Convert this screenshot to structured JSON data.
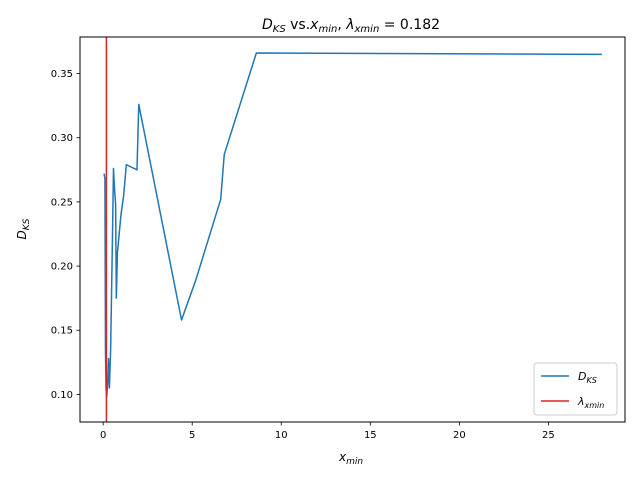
{
  "chart_data": {
    "type": "line",
    "title": {
      "main": "D",
      "main_sub": "KS",
      "middle": " vs.",
      "x": "x",
      "x_sub": "min",
      "sep": ", ",
      "lambda": "λ",
      "lambda_sub": "xmin",
      "eq": " = 0.182"
    },
    "xlabel": {
      "main": "x",
      "sub": "min"
    },
    "ylabel": {
      "main": "D",
      "sub": "KS"
    },
    "xlim": [
      -1.3,
      29.3
    ],
    "ylim": [
      0.0785,
      0.3785
    ],
    "xticks": [
      0,
      5,
      10,
      15,
      20,
      25
    ],
    "xtick_labels": [
      "0",
      "5",
      "10",
      "15",
      "20",
      "25"
    ],
    "yticks": [
      0.1,
      0.15,
      0.2,
      0.25,
      0.3,
      0.35
    ],
    "ytick_labels": [
      "0.10",
      "0.15",
      "0.20",
      "0.25",
      "0.30",
      "0.35"
    ],
    "grid": false,
    "legend_position": "lower-right",
    "series": [
      {
        "name": {
          "main": "D",
          "sub": "KS"
        },
        "color": "#1f77b4",
        "points": [
          [
            0.05,
            0.272
          ],
          [
            0.1,
            0.268
          ],
          [
            0.13,
            0.135
          ],
          [
            0.16,
            0.105
          ],
          [
            0.2,
            0.098
          ],
          [
            0.25,
            0.108
          ],
          [
            0.3,
            0.128
          ],
          [
            0.35,
            0.105
          ],
          [
            0.42,
            0.135
          ],
          [
            0.52,
            0.22
          ],
          [
            0.58,
            0.276
          ],
          [
            0.64,
            0.26
          ],
          [
            0.7,
            0.248
          ],
          [
            0.74,
            0.175
          ],
          [
            0.8,
            0.21
          ],
          [
            1.0,
            0.24
          ],
          [
            1.15,
            0.255
          ],
          [
            1.3,
            0.279
          ],
          [
            1.9,
            0.275
          ],
          [
            2.0,
            0.326
          ],
          [
            4.4,
            0.158
          ],
          [
            5.2,
            0.189
          ],
          [
            6.6,
            0.252
          ],
          [
            6.8,
            0.287
          ],
          [
            8.6,
            0.366
          ],
          [
            28.0,
            0.365
          ]
        ]
      }
    ],
    "vlines": [
      {
        "name": {
          "main": "λ",
          "sub": "xmin"
        },
        "color": "#d62728",
        "x": 0.182
      }
    ]
  }
}
